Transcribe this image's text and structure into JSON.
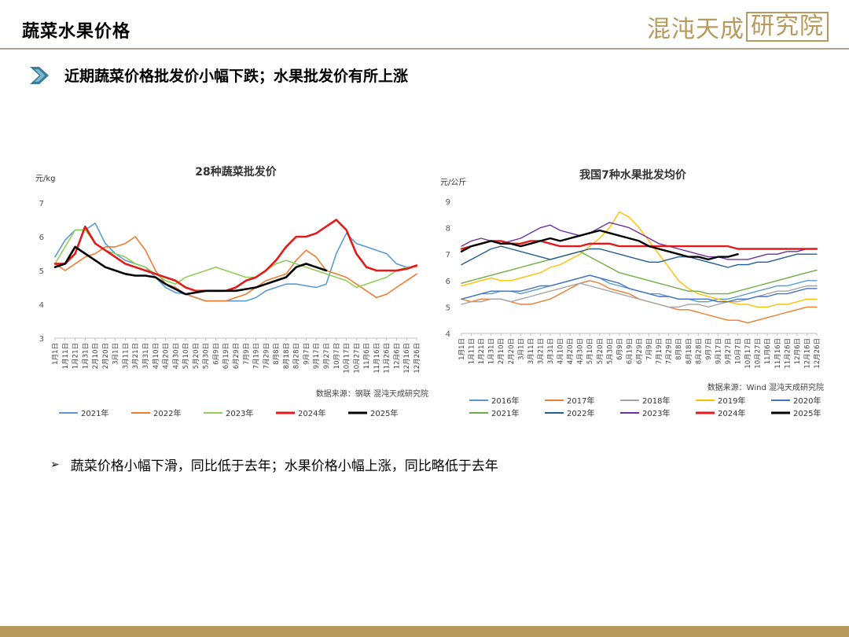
{
  "header": {
    "title": "蔬菜水果价格",
    "logo_text": "混沌天成",
    "logo_box_text": "研究院"
  },
  "section": {
    "heading": "近期蔬菜价格批发价小幅下跌；水果批发价有所上涨"
  },
  "bullet": {
    "text": "蔬菜价格小幅下滑，同比低于去年；水果价格小幅上涨，同比略低于去年"
  },
  "colors": {
    "accent": "#b79a5c",
    "chevron": "#3a7d9c"
  },
  "chart_data": [
    {
      "type": "line",
      "title": "28种蔬菜批发价",
      "ylabel": "元/kg",
      "ylim": [
        3,
        7
      ],
      "yticks": [
        3,
        4,
        5,
        6,
        7
      ],
      "xticks": [
        "1月1日",
        "1月11日",
        "1月21日",
        "1月31日",
        "2月10日",
        "2月20日",
        "3月1日",
        "3月11日",
        "3月21日",
        "3月31日",
        "4月10日",
        "4月20日",
        "4月30日",
        "5月10日",
        "5月20日",
        "5月30日",
        "6月9日",
        "6月19日",
        "6月29日",
        "7月9日",
        "7月19日",
        "7月29日",
        "8月8日",
        "8月18日",
        "8月28日",
        "9月7日",
        "9月17日",
        "9月27日",
        "10月7日",
        "10月17日",
        "10月27日",
        "11月6日",
        "11月16日",
        "11月26日",
        "12月6日",
        "12月16日",
        "12月26日"
      ],
      "source": "数据来源：钢联  混沌天成研究院",
      "series": [
        {
          "name": "2021年",
          "color": "#5b9bd5",
          "width": 1.6,
          "values": [
            5.4,
            5.9,
            6.2,
            6.2,
            6.4,
            5.8,
            5.5,
            5.3,
            5.2,
            5.1,
            4.8,
            4.5,
            4.35,
            4.3,
            4.2,
            4.1,
            4.1,
            4.1,
            4.1,
            4.1,
            4.2,
            4.4,
            4.5,
            4.6,
            4.6,
            4.55,
            4.5,
            4.6,
            5.5,
            6.1,
            5.8,
            5.7,
            5.6,
            5.5,
            5.2,
            5.1,
            5.1
          ]
        },
        {
          "name": "2022年",
          "color": "#ed7d31",
          "width": 1.6,
          "values": [
            5.2,
            5.0,
            5.2,
            5.4,
            5.5,
            5.7,
            5.7,
            5.8,
            6.0,
            5.6,
            5.0,
            4.6,
            4.5,
            4.3,
            4.2,
            4.1,
            4.1,
            4.1,
            4.2,
            4.3,
            4.5,
            4.7,
            4.8,
            4.9,
            5.3,
            5.6,
            5.4,
            5.0,
            4.9,
            4.8,
            4.6,
            4.4,
            4.2,
            4.3,
            4.5,
            4.7,
            4.9
          ]
        },
        {
          "name": "2023年",
          "color": "#8fce57",
          "width": 1.6,
          "values": [
            5.2,
            5.7,
            6.2,
            6.2,
            5.8,
            5.6,
            5.5,
            5.4,
            5.2,
            5.1,
            4.9,
            4.7,
            4.6,
            4.8,
            4.9,
            5.0,
            5.1,
            5.0,
            4.9,
            4.8,
            4.8,
            5.0,
            5.2,
            5.3,
            5.2,
            5.1,
            5.0,
            4.9,
            4.8,
            4.7,
            4.5,
            4.6,
            4.7,
            4.8,
            5.0,
            5.1,
            5.1
          ]
        },
        {
          "name": "2024年",
          "color": "#e21a1a",
          "width": 2.6,
          "values": [
            5.2,
            5.2,
            5.5,
            6.3,
            5.8,
            5.6,
            5.4,
            5.2,
            5.1,
            5.0,
            4.9,
            4.8,
            4.7,
            4.5,
            4.4,
            4.4,
            4.4,
            4.4,
            4.5,
            4.7,
            4.8,
            5.0,
            5.3,
            5.7,
            6.0,
            6.0,
            6.1,
            6.3,
            6.5,
            6.2,
            5.5,
            5.1,
            5.0,
            5.0,
            5.0,
            5.05,
            5.15
          ]
        },
        {
          "name": "2025年",
          "color": "#000000",
          "width": 2.6,
          "values": [
            5.1,
            5.2,
            5.7,
            5.5,
            5.3,
            5.1,
            5.0,
            4.9,
            4.85,
            4.85,
            4.8,
            4.6,
            4.45,
            4.3,
            4.35,
            4.4,
            4.4,
            4.4,
            4.4,
            4.45,
            4.5,
            4.6,
            4.7,
            4.8,
            5.1,
            5.2,
            5.1,
            5.0
          ]
        }
      ]
    },
    {
      "type": "line",
      "title": "我国7种水果批发均价",
      "ylabel": "元/公斤",
      "ylim": [
        4,
        9
      ],
      "yticks": [
        4,
        5,
        6,
        7,
        8,
        9
      ],
      "xticks": [
        "1月1日",
        "1月11日",
        "1月21日",
        "1月31日",
        "2月10日",
        "2月20日",
        "3月1日",
        "3月11日",
        "3月21日",
        "3月31日",
        "4月10日",
        "4月20日",
        "4月30日",
        "5月10日",
        "5月20日",
        "5月30日",
        "6月9日",
        "6月19日",
        "6月29日",
        "7月9日",
        "7月19日",
        "7月29日",
        "8月8日",
        "8月18日",
        "8月28日",
        "9月7日",
        "9月17日",
        "9月27日",
        "10月7日",
        "10月17日",
        "10月27日",
        "11月6日",
        "11月16日",
        "11月26日",
        "12月6日",
        "12月16日",
        "12月26日"
      ],
      "source": "数据来源：Wind  混沌天成研究院",
      "series": [
        {
          "name": "2016年",
          "color": "#5b9bd5",
          "width": 1.4,
          "values": [
            5.3,
            5.4,
            5.5,
            5.5,
            5.6,
            5.6,
            5.5,
            5.6,
            5.7,
            5.8,
            5.9,
            6.0,
            6.1,
            6.2,
            6.1,
            5.9,
            5.8,
            5.7,
            5.6,
            5.5,
            5.5,
            5.4,
            5.3,
            5.3,
            5.2,
            5.2,
            5.3,
            5.3,
            5.4,
            5.5,
            5.6,
            5.7,
            5.8,
            5.8,
            5.9,
            6.0,
            6.0
          ]
        },
        {
          "name": "2017年",
          "color": "#ed7d31",
          "width": 1.4,
          "values": [
            5.3,
            5.2,
            5.3,
            5.3,
            5.3,
            5.2,
            5.1,
            5.1,
            5.2,
            5.3,
            5.5,
            5.7,
            5.9,
            6.0,
            5.9,
            5.7,
            5.6,
            5.5,
            5.3,
            5.2,
            5.1,
            5.0,
            4.9,
            4.9,
            4.8,
            4.7,
            4.6,
            4.5,
            4.5,
            4.4,
            4.5,
            4.6,
            4.7,
            4.8,
            4.9,
            5.0,
            5.0
          ]
        },
        {
          "name": "2018年",
          "color": "#a5a5a5",
          "width": 1.4,
          "values": [
            5.1,
            5.2,
            5.2,
            5.3,
            5.3,
            5.2,
            5.3,
            5.4,
            5.5,
            5.6,
            5.7,
            5.8,
            5.9,
            5.8,
            5.7,
            5.6,
            5.5,
            5.4,
            5.3,
            5.2,
            5.1,
            5.0,
            5.0,
            5.1,
            5.1,
            5.0,
            5.1,
            5.2,
            5.2,
            5.3,
            5.4,
            5.5,
            5.6,
            5.6,
            5.7,
            5.8,
            5.8
          ]
        },
        {
          "name": "2019年",
          "color": "#ffc000",
          "width": 1.4,
          "values": [
            5.8,
            5.9,
            6.0,
            6.1,
            6.0,
            6.0,
            6.1,
            6.2,
            6.3,
            6.5,
            6.6,
            6.8,
            7.0,
            7.3,
            7.6,
            8.0,
            8.6,
            8.4,
            8.0,
            7.5,
            7.0,
            6.5,
            6.0,
            5.7,
            5.5,
            5.4,
            5.3,
            5.2,
            5.1,
            5.1,
            5.0,
            5.0,
            5.1,
            5.1,
            5.2,
            5.3,
            5.3
          ]
        },
        {
          "name": "2020年",
          "color": "#4472c4",
          "width": 1.4,
          "values": [
            5.3,
            5.4,
            5.5,
            5.6,
            5.6,
            5.6,
            5.6,
            5.7,
            5.8,
            5.8,
            5.9,
            6.0,
            6.1,
            6.2,
            6.1,
            6.0,
            5.9,
            5.7,
            5.6,
            5.5,
            5.4,
            5.4,
            5.3,
            5.3,
            5.3,
            5.3,
            5.2,
            5.2,
            5.3,
            5.3,
            5.4,
            5.4,
            5.5,
            5.5,
            5.6,
            5.7,
            5.7
          ]
        },
        {
          "name": "2021年",
          "color": "#70ad47",
          "width": 1.4,
          "values": [
            5.9,
            6.0,
            6.1,
            6.2,
            6.3,
            6.4,
            6.5,
            6.6,
            6.7,
            6.8,
            6.9,
            7.0,
            7.1,
            6.9,
            6.7,
            6.5,
            6.3,
            6.2,
            6.1,
            6.0,
            5.9,
            5.8,
            5.7,
            5.6,
            5.6,
            5.5,
            5.5,
            5.5,
            5.6,
            5.7,
            5.8,
            5.9,
            6.0,
            6.1,
            6.2,
            6.3,
            6.4
          ]
        },
        {
          "name": "2022年",
          "color": "#255e91",
          "width": 1.4,
          "values": [
            6.6,
            6.8,
            7.0,
            7.2,
            7.3,
            7.2,
            7.1,
            7.0,
            6.9,
            6.8,
            6.9,
            7.0,
            7.1,
            7.2,
            7.2,
            7.1,
            7.0,
            6.9,
            6.8,
            6.7,
            6.7,
            6.8,
            6.9,
            6.9,
            6.8,
            6.7,
            6.6,
            6.5,
            6.6,
            6.6,
            6.7,
            6.7,
            6.8,
            6.9,
            7.0,
            7.0,
            7.0
          ]
        },
        {
          "name": "2023年",
          "color": "#7030a0",
          "width": 1.4,
          "values": [
            7.3,
            7.5,
            7.6,
            7.5,
            7.4,
            7.5,
            7.6,
            7.8,
            8.0,
            8.1,
            7.9,
            7.8,
            7.7,
            7.8,
            8.0,
            8.2,
            8.1,
            8.0,
            7.8,
            7.6,
            7.4,
            7.3,
            7.2,
            7.1,
            7.0,
            6.9,
            6.9,
            6.8,
            6.8,
            6.8,
            6.9,
            7.0,
            7.0,
            7.1,
            7.1,
            7.2,
            7.2
          ]
        },
        {
          "name": "2024年",
          "color": "#e21a1a",
          "width": 2.4,
          "values": [
            7.2,
            7.3,
            7.4,
            7.5,
            7.5,
            7.4,
            7.4,
            7.5,
            7.5,
            7.4,
            7.3,
            7.3,
            7.3,
            7.4,
            7.4,
            7.4,
            7.3,
            7.3,
            7.3,
            7.3,
            7.3,
            7.3,
            7.3,
            7.3,
            7.3,
            7.3,
            7.3,
            7.3,
            7.2,
            7.2,
            7.2,
            7.2,
            7.2,
            7.2,
            7.2,
            7.2,
            7.2
          ]
        },
        {
          "name": "2025年",
          "color": "#000000",
          "width": 2.4,
          "values": [
            7.1,
            7.3,
            7.4,
            7.5,
            7.4,
            7.4,
            7.3,
            7.4,
            7.5,
            7.6,
            7.5,
            7.6,
            7.7,
            7.8,
            7.9,
            7.8,
            7.7,
            7.6,
            7.5,
            7.3,
            7.2,
            7.1,
            7.0,
            6.9,
            6.9,
            6.8,
            6.9,
            6.9,
            7.0
          ]
        }
      ]
    }
  ]
}
